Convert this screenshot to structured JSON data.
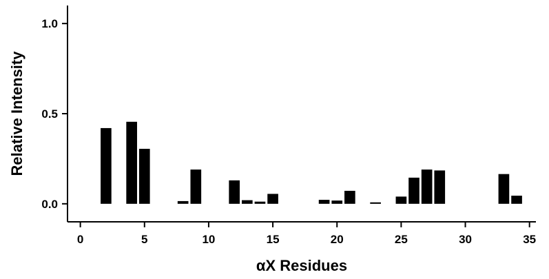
{
  "chart_data": {
    "type": "bar",
    "xlabel": "αX Residues",
    "ylabel": "Relative Intensity",
    "xlim": [
      -1,
      35.5
    ],
    "ylim": [
      -0.1,
      1.1
    ],
    "x_ticks": [
      0,
      5,
      10,
      15,
      20,
      25,
      30,
      35
    ],
    "x_tick_labels": [
      "0",
      "5",
      "10",
      "15",
      "20",
      "25",
      "30",
      "35"
    ],
    "y_ticks": [
      0.0,
      0.5,
      1.0
    ],
    "y_tick_labels": [
      "0.0",
      "0.5",
      "1.0"
    ],
    "bar_color": "#000000",
    "grid": false,
    "legend": "none",
    "x": [
      2,
      4,
      5,
      7,
      8,
      9,
      10,
      12,
      13,
      14,
      15,
      16,
      18,
      19,
      20,
      21,
      23,
      25,
      26,
      27,
      28,
      33,
      34
    ],
    "values": [
      0.42,
      0.455,
      0.305,
      0.0,
      0.015,
      0.19,
      0.0,
      0.13,
      0.02,
      0.012,
      0.055,
      0.0,
      0.0,
      0.022,
      0.018,
      0.072,
      0.008,
      0.04,
      0.145,
      0.19,
      0.185,
      0.165,
      0.045
    ]
  }
}
